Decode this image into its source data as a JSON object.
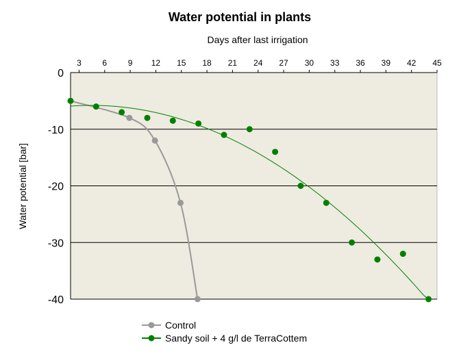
{
  "chart_data": {
    "type": "scatter",
    "title": "Water potential in plants",
    "xlabel": "Days after last irrigation",
    "ylabel": "Water potential [bar]",
    "x_axis_position": "top",
    "xlim": [
      2,
      45
    ],
    "ylim": [
      -40,
      0
    ],
    "xticks": [
      3,
      6,
      9,
      12,
      15,
      18,
      21,
      24,
      27,
      30,
      33,
      36,
      39,
      42,
      45
    ],
    "yticks": [
      0,
      -10,
      -20,
      -30,
      -40
    ],
    "grid": "horizontal",
    "legend_position": "bottom",
    "series": [
      {
        "name": "Control",
        "color": "#999999",
        "x": [
          2,
          8.9,
          11.9,
          14.9,
          16.9
        ],
        "y": [
          -5,
          -8,
          -12,
          -23,
          -40
        ],
        "trend": "smooth"
      },
      {
        "name": "Sandy soil + 4 g/l de TerraCottem",
        "color": "#008000",
        "x": [
          2,
          5,
          8,
          11,
          14,
          17,
          20,
          23,
          26,
          29,
          32,
          35,
          38,
          41,
          44
        ],
        "y": [
          -5,
          -6,
          -7,
          -8,
          -8.5,
          -9,
          -11,
          -10,
          -14,
          -20,
          -23,
          -30,
          -33,
          -32,
          -40
        ],
        "trend": "polynomial"
      }
    ]
  }
}
